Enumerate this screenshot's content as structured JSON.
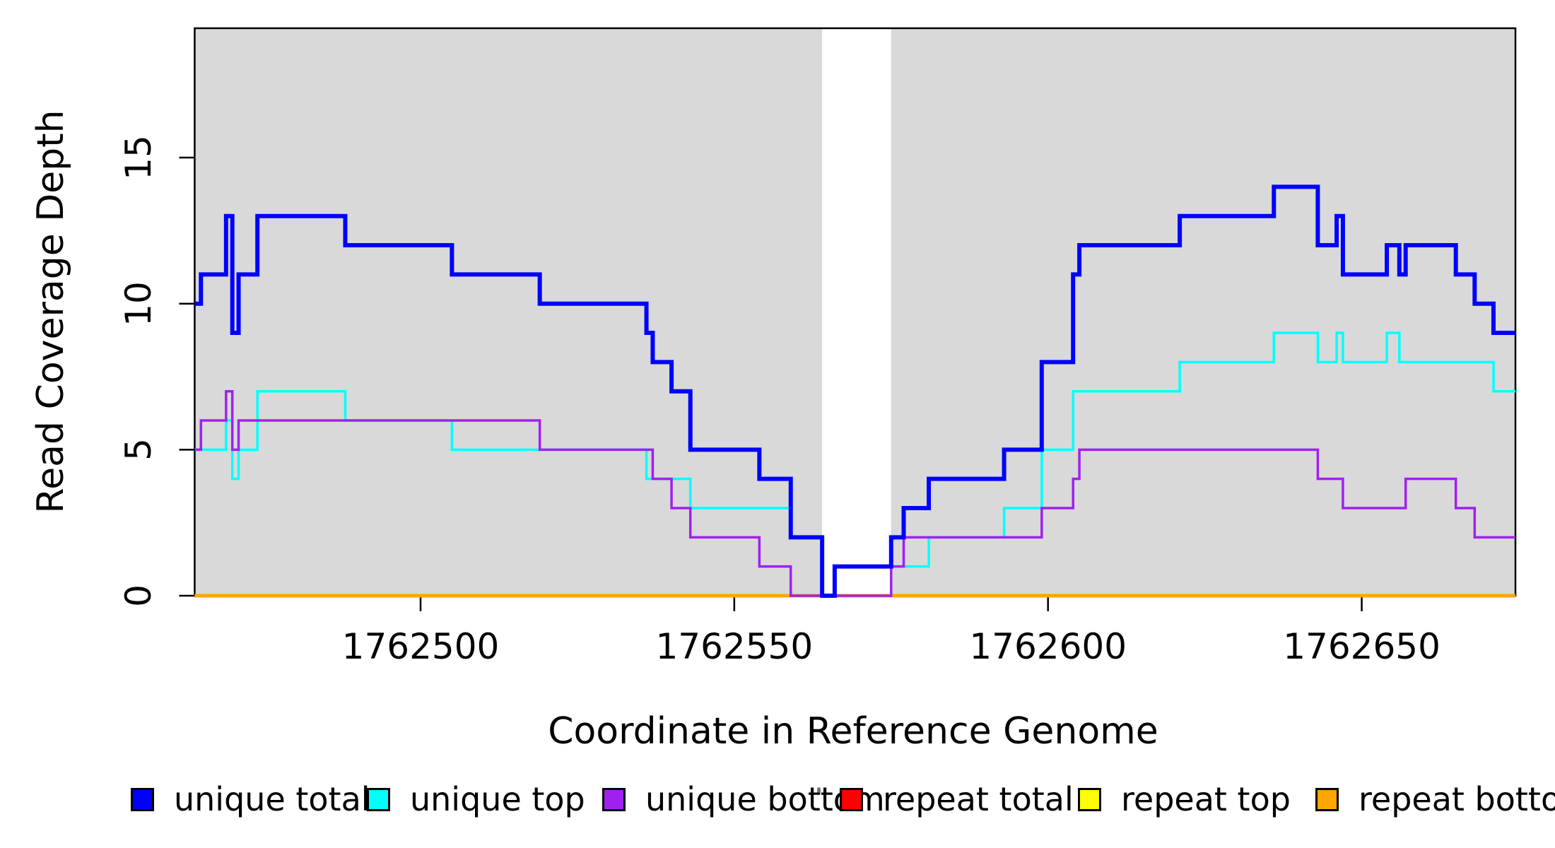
{
  "chart_data": {
    "type": "line",
    "step_mode": "after",
    "title": "",
    "xlabel": "Coordinate in Reference Genome",
    "ylabel": "Read Coverage Depth",
    "xlim": [
      1762464,
      1762674.5
    ],
    "ylim": [
      0,
      19.43
    ],
    "grid": false,
    "legend_position": "bottom-horizontal",
    "x_ticks": [
      {
        "value": 1762500,
        "label": "1762500"
      },
      {
        "value": 1762550,
        "label": "1762550"
      },
      {
        "value": 1762600,
        "label": "1762600"
      },
      {
        "value": 1762650,
        "label": "1762650"
      }
    ],
    "y_ticks": [
      {
        "value": 0,
        "label": "0"
      },
      {
        "value": 5,
        "label": "5"
      },
      {
        "value": 10,
        "label": "10"
      },
      {
        "value": 15,
        "label": "15"
      }
    ],
    "shaded_regions": [
      {
        "from": 1762464,
        "to": 1762564
      },
      {
        "from": 1762575,
        "to": 1762674.5
      }
    ],
    "shade_color": "#D9D9D9",
    "series": [
      {
        "name": "repeat total",
        "color": "#FF0000",
        "line_width": 3.5,
        "steps": [
          [
            1762464,
            0
          ]
        ]
      },
      {
        "name": "repeat top",
        "color": "#FFFF00",
        "line_width": 3.5,
        "steps": [
          [
            1762464,
            0
          ]
        ]
      },
      {
        "name": "repeat bottom",
        "color": "#FFA500",
        "line_width": 5,
        "steps": [
          [
            1762464,
            0
          ]
        ]
      },
      {
        "name": "unique top",
        "color": "#00FFFF",
        "line_width": 3.5,
        "steps": [
          [
            1762464,
            5
          ],
          [
            1762469,
            6
          ],
          [
            1762470,
            4
          ],
          [
            1762471,
            5
          ],
          [
            1762474,
            7
          ],
          [
            1762488,
            6
          ],
          [
            1762505,
            5
          ],
          [
            1762536,
            4
          ],
          [
            1762543,
            3
          ],
          [
            1762559,
            2
          ],
          [
            1762564,
            0
          ],
          [
            1762566,
            1
          ],
          [
            1762581,
            2
          ],
          [
            1762593,
            3
          ],
          [
            1762599,
            5
          ],
          [
            1762604,
            7
          ],
          [
            1762621,
            8
          ],
          [
            1762636,
            9
          ],
          [
            1762643,
            8
          ],
          [
            1762646,
            9
          ],
          [
            1762647,
            8
          ],
          [
            1762654,
            9
          ],
          [
            1762656,
            8
          ],
          [
            1762671,
            7
          ]
        ]
      },
      {
        "name": "unique bottom",
        "color": "#A020F0",
        "line_width": 3.5,
        "steps": [
          [
            1762464,
            5
          ],
          [
            1762465,
            6
          ],
          [
            1762469,
            7
          ],
          [
            1762470,
            5
          ],
          [
            1762471,
            6
          ],
          [
            1762519,
            5
          ],
          [
            1762537,
            4
          ],
          [
            1762540,
            3
          ],
          [
            1762543,
            2
          ],
          [
            1762554,
            1
          ],
          [
            1762559,
            0
          ],
          [
            1762575,
            1
          ],
          [
            1762577,
            2
          ],
          [
            1762599,
            3
          ],
          [
            1762604,
            4
          ],
          [
            1762605,
            5
          ],
          [
            1762643,
            4
          ],
          [
            1762647,
            3
          ],
          [
            1762657,
            4
          ],
          [
            1762665,
            3
          ],
          [
            1762668,
            2
          ]
        ]
      },
      {
        "name": "unique total",
        "color": "#0000FF",
        "line_width": 6,
        "steps": [
          [
            1762464,
            10
          ],
          [
            1762465,
            11
          ],
          [
            1762469,
            13
          ],
          [
            1762470,
            9
          ],
          [
            1762471,
            11
          ],
          [
            1762474,
            13
          ],
          [
            1762488,
            12
          ],
          [
            1762505,
            11
          ],
          [
            1762519,
            10
          ],
          [
            1762536,
            9
          ],
          [
            1762537,
            8
          ],
          [
            1762540,
            7
          ],
          [
            1762543,
            5
          ],
          [
            1762554,
            4
          ],
          [
            1762559,
            2
          ],
          [
            1762564,
            0
          ],
          [
            1762566,
            1
          ],
          [
            1762575,
            2
          ],
          [
            1762577,
            3
          ],
          [
            1762581,
            4
          ],
          [
            1762593,
            5
          ],
          [
            1762599,
            8
          ],
          [
            1762604,
            11
          ],
          [
            1762605,
            12
          ],
          [
            1762621,
            13
          ],
          [
            1762636,
            14
          ],
          [
            1762643,
            12
          ],
          [
            1762646,
            13
          ],
          [
            1762647,
            11
          ],
          [
            1762654,
            12
          ],
          [
            1762656,
            11
          ],
          [
            1762657,
            12
          ],
          [
            1762665,
            11
          ],
          [
            1762668,
            10
          ],
          [
            1762671,
            9
          ]
        ]
      }
    ],
    "legend": [
      {
        "label": "unique total",
        "color": "#0000FF"
      },
      {
        "label": "unique top",
        "color": "#00FFFF"
      },
      {
        "label": "unique bottom",
        "color": "#A020F0"
      },
      {
        "label": "repeat total",
        "color": "#FF0000"
      },
      {
        "label": "repeat top",
        "color": "#FFFF00"
      },
      {
        "label": "repeat bottom",
        "color": "#FFA500"
      }
    ]
  }
}
